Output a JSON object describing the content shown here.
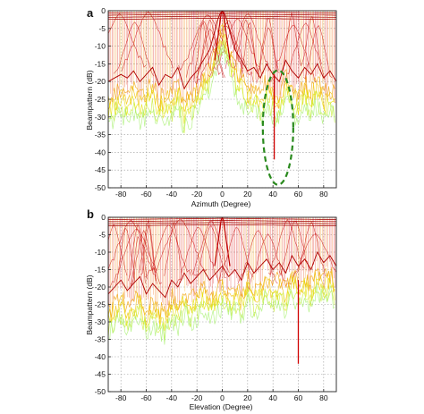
{
  "chart_data": [
    {
      "panel_label": "a",
      "type": "line",
      "xlabel": "Azimuth (Degree)",
      "ylabel": "Beampattern (dB)",
      "xlim": [
        -90,
        90
      ],
      "ylim": [
        -50,
        0
      ],
      "x_ticks": [
        -80,
        -60,
        -40,
        -20,
        0,
        20,
        40,
        60,
        80
      ],
      "y_ticks": [
        0,
        -5,
        -10,
        -15,
        -20,
        -25,
        -30,
        -35,
        -40,
        -45,
        -50
      ],
      "grid": true,
      "plot_style": "dense overlay of many beampattern curves (3D surface viewed edge-on), red to yellow/green colouring",
      "series": [
        {
          "x": [
            -90,
            -85,
            -80,
            -75,
            -70,
            -65,
            -60,
            -55,
            -50,
            -45,
            -40,
            -35,
            -30,
            -25,
            -20,
            -15,
            -10,
            -6,
            -4,
            -2,
            0,
            2,
            4,
            6,
            10,
            15,
            20,
            25,
            30,
            35,
            40,
            45,
            50,
            55,
            60,
            65,
            70,
            75,
            80,
            85,
            90
          ],
          "values": [
            -20,
            -19,
            -18,
            -19,
            -17,
            -20,
            -18,
            -16,
            -21,
            -18,
            -19,
            -16,
            -22,
            -19,
            -17,
            -14,
            -11,
            -6,
            -3,
            -1,
            0,
            -1,
            -3,
            -6,
            -11,
            -14,
            -17,
            -16,
            -19,
            -15,
            -18,
            -20,
            -14,
            -17,
            -19,
            -16,
            -18,
            -15,
            -19,
            -17,
            -20
          ]
        }
      ],
      "notch": {
        "x": 41,
        "y": -42
      },
      "ellipse_highlight": {
        "x_center": 44,
        "y_center": -33,
        "color": "#2a8a1e"
      }
    },
    {
      "panel_label": "b",
      "type": "line",
      "xlabel": "Elevation (Degree)",
      "ylabel": "Beampattern (dB)",
      "xlim": [
        -90,
        90
      ],
      "ylim": [
        -50,
        0
      ],
      "x_ticks": [
        -80,
        -60,
        -40,
        -20,
        0,
        20,
        40,
        60,
        80
      ],
      "y_ticks": [
        0,
        -5,
        -10,
        -15,
        -20,
        -25,
        -30,
        -35,
        -40,
        -45,
        -50
      ],
      "grid": true,
      "plot_style": "dense overlay of many beampattern curves (3D surface viewed edge-on), red to yellow/green colouring",
      "series": [
        {
          "x": [
            -90,
            -85,
            -80,
            -75,
            -70,
            -65,
            -60,
            -55,
            -50,
            -45,
            -40,
            -35,
            -30,
            -25,
            -20,
            -15,
            -10,
            -5,
            0,
            5,
            10,
            15,
            20,
            25,
            30,
            35,
            40,
            45,
            50,
            55,
            60,
            65,
            70,
            75,
            80,
            85,
            90
          ],
          "values": [
            -22,
            -20,
            -18,
            -21,
            -19,
            -17,
            -22,
            -19,
            -21,
            -23,
            -18,
            -20,
            -16,
            -19,
            -17,
            -15,
            -18,
            -16,
            -14,
            -17,
            -15,
            -18,
            -13,
            -16,
            -14,
            -12,
            -15,
            -13,
            -16,
            -11,
            -14,
            -12,
            -15,
            -10,
            -13,
            -11,
            -14
          ]
        }
      ],
      "notch": {
        "x": 60,
        "y": -42
      }
    }
  ]
}
